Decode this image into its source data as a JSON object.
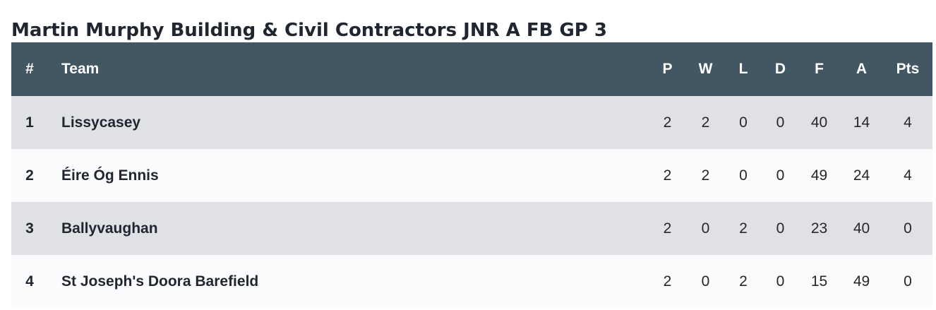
{
  "title": "Martin Murphy Building & Civil Contractors JNR A FB GP 3",
  "table": {
    "headers": {
      "pos": "#",
      "team": "Team",
      "p": "P",
      "w": "W",
      "l": "L",
      "d": "D",
      "f": "F",
      "a": "A",
      "pts": "Pts"
    },
    "rows": [
      {
        "pos": "1",
        "team": "Lissycasey",
        "p": "2",
        "w": "2",
        "l": "0",
        "d": "0",
        "f": "40",
        "a": "14",
        "pts": "4"
      },
      {
        "pos": "2",
        "team": "Éire Óg Ennis",
        "p": "2",
        "w": "2",
        "l": "0",
        "d": "0",
        "f": "49",
        "a": "24",
        "pts": "4"
      },
      {
        "pos": "3",
        "team": "Ballyvaughan",
        "p": "2",
        "w": "0",
        "l": "2",
        "d": "0",
        "f": "23",
        "a": "40",
        "pts": "0"
      },
      {
        "pos": "4",
        "team": "St Joseph's Doora Barefield",
        "p": "2",
        "w": "0",
        "l": "2",
        "d": "0",
        "f": "15",
        "a": "49",
        "pts": "0"
      }
    ]
  },
  "colors": {
    "header_bg": "#435663",
    "row_odd_bg": "#dfe1e5",
    "row_even_bg": "#fbfbfd",
    "title_text": "#1f2630"
  }
}
